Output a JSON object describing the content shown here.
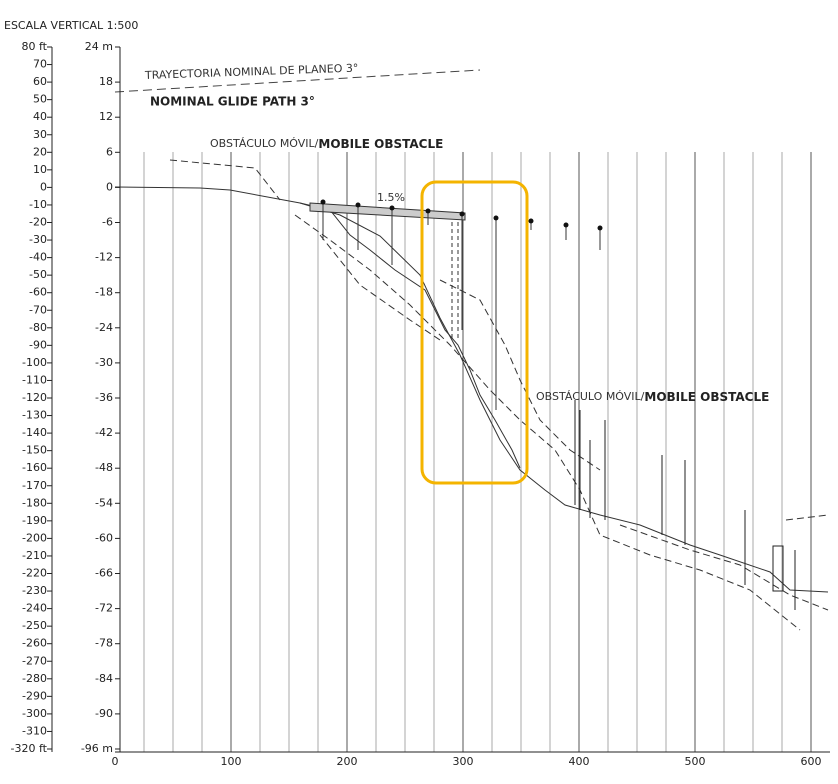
{
  "scale_title": "ESCALA VERTICAL 1:500",
  "axis_ft": [
    "80 ft",
    70,
    60,
    50,
    40,
    30,
    20,
    10,
    0,
    -10,
    -20,
    -30,
    -40,
    -50,
    -60,
    -70,
    -80,
    -90,
    -100,
    -110,
    -120,
    -130,
    -140,
    -150,
    -160,
    -170,
    -180,
    -190,
    -200,
    -210,
    -220,
    -230,
    -240,
    -250,
    -260,
    -270,
    -280,
    -290,
    -300,
    -310,
    "-320 ft"
  ],
  "axis_m": [
    "24 m",
    18,
    12,
    6,
    0,
    -6,
    -12,
    -18,
    -24,
    -30,
    -36,
    -42,
    -48,
    -54,
    -60,
    -66,
    -72,
    -78,
    -84,
    -90,
    "-96 m"
  ],
  "axis_x": [
    0,
    100,
    200,
    300,
    400,
    500,
    600
  ],
  "labels": {
    "glide_path_es": "TRAYECTORIA NOMINAL DE PLANEO 3°",
    "glide_path_en": "NOMINAL GLIDE PATH 3°",
    "slope": "1.5%",
    "obstacle_1_es": "OBSTÁCULO MÓVIL/",
    "obstacle_1_en": "MOBILE OBSTACLE",
    "obstacle_2_es": "OBSTÁCULO MÓVIL/",
    "obstacle_2_en": "MOBILE OBSTACLE"
  }
}
